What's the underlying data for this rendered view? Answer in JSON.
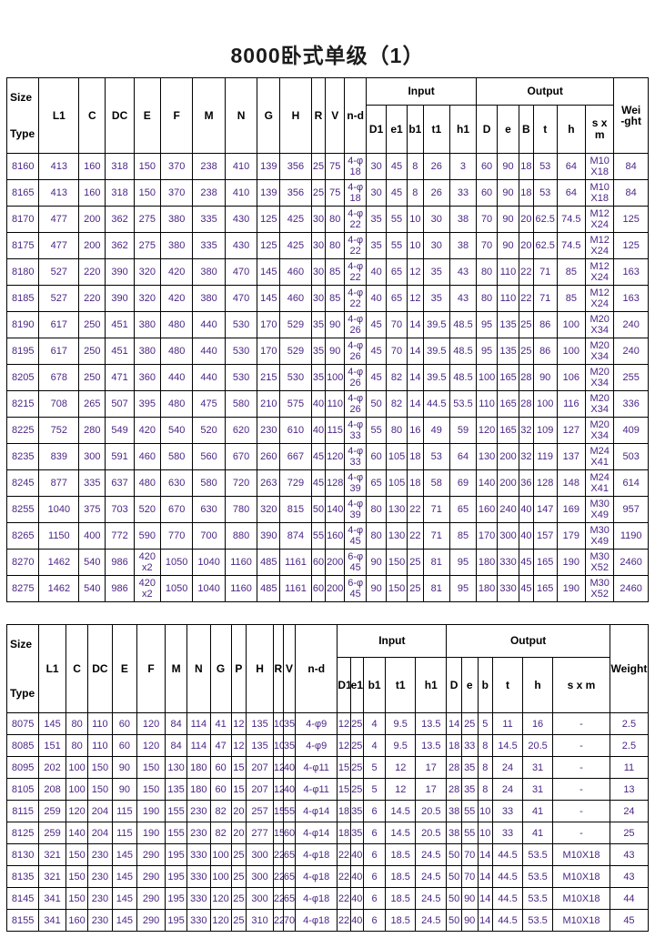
{
  "page": {
    "title": "8000卧式单级（1）"
  },
  "colors": {
    "background": "#ffffff",
    "border": "#000000",
    "header_text": "#000000",
    "data_text": "#4b2585"
  },
  "table1": {
    "header": {
      "size": "Size",
      "type": "Type",
      "dim_cols": [
        "L1",
        "C",
        "DC",
        "E",
        "F",
        "M",
        "N",
        "G",
        "H",
        "R",
        "V",
        "n-d"
      ],
      "input_group": "Input",
      "output_group": "Output",
      "input_cols": [
        "D1",
        "e1",
        "b1",
        "t1",
        "h1"
      ],
      "output_cols": [
        "D",
        "e",
        "B",
        "t",
        "h",
        "s x\nm"
      ],
      "weight": "Wei\n-ght"
    },
    "rows": [
      [
        "8160",
        "413",
        "160",
        "318",
        "150",
        "370",
        "238",
        "410",
        "139",
        "356",
        "25",
        "75",
        "4-φ\n18",
        "30",
        "45",
        "8",
        "26",
        "3",
        "60",
        "90",
        "18",
        "53",
        "64",
        "M10\nX18",
        "84"
      ],
      [
        "8165",
        "413",
        "160",
        "318",
        "150",
        "370",
        "238",
        "410",
        "139",
        "356",
        "25",
        "75",
        "4-φ\n18",
        "30",
        "45",
        "8",
        "26",
        "33",
        "60",
        "90",
        "18",
        "53",
        "64",
        "M10\nX18",
        "84"
      ],
      [
        "8170",
        "477",
        "200",
        "362",
        "275",
        "380",
        "335",
        "430",
        "125",
        "425",
        "30",
        "80",
        "4-φ\n22",
        "35",
        "55",
        "10",
        "30",
        "38",
        "70",
        "90",
        "20",
        "62.5",
        "74.5",
        "M12\nX24",
        "125"
      ],
      [
        "8175",
        "477",
        "200",
        "362",
        "275",
        "380",
        "335",
        "430",
        "125",
        "425",
        "30",
        "80",
        "4-φ\n22",
        "35",
        "55",
        "10",
        "30",
        "38",
        "70",
        "90",
        "20",
        "62.5",
        "74.5",
        "M12\nX24",
        "125"
      ],
      [
        "8180",
        "527",
        "220",
        "390",
        "320",
        "420",
        "380",
        "470",
        "145",
        "460",
        "30",
        "85",
        "4-φ\n22",
        "40",
        "65",
        "12",
        "35",
        "43",
        "80",
        "110",
        "22",
        "71",
        "85",
        "M12\nX24",
        "163"
      ],
      [
        "8185",
        "527",
        "220",
        "390",
        "320",
        "420",
        "380",
        "470",
        "145",
        "460",
        "30",
        "85",
        "4-φ\n22",
        "40",
        "65",
        "12",
        "35",
        "43",
        "80",
        "110",
        "22",
        "71",
        "85",
        "M12\nX24",
        "163"
      ],
      [
        "8190",
        "617",
        "250",
        "451",
        "380",
        "480",
        "440",
        "530",
        "170",
        "529",
        "35",
        "90",
        "4-φ\n26",
        "45",
        "70",
        "14",
        "39.5",
        "48.5",
        "95",
        "135",
        "25",
        "86",
        "100",
        "M20\nX34",
        "240"
      ],
      [
        "8195",
        "617",
        "250",
        "451",
        "380",
        "480",
        "440",
        "530",
        "170",
        "529",
        "35",
        "90",
        "4-φ\n26",
        "45",
        "70",
        "14",
        "39.5",
        "48.5",
        "95",
        "135",
        "25",
        "86",
        "100",
        "M20\nX34",
        "240"
      ],
      [
        "8205",
        "678",
        "250",
        "471",
        "360",
        "440",
        "440",
        "530",
        "215",
        "530",
        "35",
        "100",
        "4-φ\n26",
        "45",
        "82",
        "14",
        "39.5",
        "48.5",
        "100",
        "165",
        "28",
        "90",
        "106",
        "M20\nX34",
        "255"
      ],
      [
        "8215",
        "708",
        "265",
        "507",
        "395",
        "480",
        "475",
        "580",
        "210",
        "575",
        "40",
        "110",
        "4-φ\n26",
        "50",
        "82",
        "14",
        "44.5",
        "53.5",
        "110",
        "165",
        "28",
        "100",
        "116",
        "M20\nX34",
        "336"
      ],
      [
        "8225",
        "752",
        "280",
        "549",
        "420",
        "540",
        "520",
        "620",
        "230",
        "610",
        "40",
        "115",
        "4-φ\n33",
        "55",
        "80",
        "16",
        "49",
        "59",
        "120",
        "165",
        "32",
        "109",
        "127",
        "M20\nX34",
        "409"
      ],
      [
        "8235",
        "839",
        "300",
        "591",
        "460",
        "580",
        "560",
        "670",
        "260",
        "667",
        "45",
        "120",
        "4-φ\n33",
        "60",
        "105",
        "18",
        "53",
        "64",
        "130",
        "200",
        "32",
        "119",
        "137",
        "M24\nX41",
        "503"
      ],
      [
        "8245",
        "877",
        "335",
        "637",
        "480",
        "630",
        "580",
        "720",
        "263",
        "729",
        "45",
        "128",
        "4-φ\n39",
        "65",
        "105",
        "18",
        "58",
        "69",
        "140",
        "200",
        "36",
        "128",
        "148",
        "M24\nX41",
        "614"
      ],
      [
        "8255",
        "1040",
        "375",
        "703",
        "520",
        "670",
        "630",
        "780",
        "320",
        "815",
        "50",
        "140",
        "4-φ\n39",
        "80",
        "130",
        "22",
        "71",
        "65",
        "160",
        "240",
        "40",
        "147",
        "169",
        "M30\nX49",
        "957"
      ],
      [
        "8265",
        "1150",
        "400",
        "772",
        "590",
        "770",
        "700",
        "880",
        "390",
        "874",
        "55",
        "160",
        "4-φ\n45",
        "80",
        "130",
        "22",
        "71",
        "85",
        "170",
        "300",
        "40",
        "157",
        "179",
        "M30\nX49",
        "1190"
      ],
      [
        "8270",
        "1462",
        "540",
        "986",
        "420\nx2",
        "1050",
        "1040",
        "1160",
        "485",
        "1161",
        "60",
        "200",
        "6-φ\n45",
        "90",
        "150",
        "25",
        "81",
        "95",
        "180",
        "330",
        "45",
        "165",
        "190",
        "M30\nX52",
        "2460"
      ],
      [
        "8275",
        "1462",
        "540",
        "986",
        "420\nx2",
        "1050",
        "1040",
        "1160",
        "485",
        "1161",
        "60",
        "200",
        "6-φ\n45",
        "90",
        "150",
        "25",
        "81",
        "95",
        "180",
        "330",
        "45",
        "165",
        "190",
        "M30\nX52",
        "2460"
      ]
    ]
  },
  "table2": {
    "header": {
      "size": "Size",
      "type": "Type",
      "dim_cols": [
        "L1",
        "C",
        "DC",
        "E",
        "F",
        "M",
        "N",
        "G",
        "P",
        "H",
        "R",
        "V",
        "n-d"
      ],
      "input_group": "Input",
      "output_group": "Output",
      "input_cols": [
        "D1",
        "e1",
        "b1",
        "t1",
        "h1"
      ],
      "output_cols": [
        "D",
        "e",
        "b",
        "t",
        "h",
        "s x m"
      ],
      "weight": "Weight"
    },
    "rows": [
      [
        "8075",
        "145",
        "80",
        "110",
        "60",
        "120",
        "84",
        "114",
        "41",
        "12",
        "135",
        "10",
        "35",
        "4-φ9",
        "12",
        "25",
        "4",
        "9.5",
        "13.5",
        "14",
        "25",
        "5",
        "11",
        "16",
        "-",
        "2.5"
      ],
      [
        "8085",
        "151",
        "80",
        "110",
        "60",
        "120",
        "84",
        "114",
        "47",
        "12",
        "135",
        "10",
        "35",
        "4-φ9",
        "12",
        "25",
        "4",
        "9.5",
        "13.5",
        "18",
        "33",
        "8",
        "14.5",
        "20.5",
        "-",
        "2.5"
      ],
      [
        "8095",
        "202",
        "100",
        "150",
        "90",
        "150",
        "130",
        "180",
        "60",
        "15",
        "207",
        "12",
        "40",
        "4-φ11",
        "15",
        "25",
        "5",
        "12",
        "17",
        "28",
        "35",
        "8",
        "24",
        "31",
        "-",
        "11"
      ],
      [
        "8105",
        "208",
        "100",
        "150",
        "90",
        "150",
        "135",
        "180",
        "60",
        "15",
        "207",
        "12",
        "40",
        "4-φ11",
        "15",
        "25",
        "5",
        "12",
        "17",
        "28",
        "35",
        "8",
        "24",
        "31",
        "-",
        "13"
      ],
      [
        "8115",
        "259",
        "120",
        "204",
        "115",
        "190",
        "155",
        "230",
        "82",
        "20",
        "257",
        "15",
        "55",
        "4-φ14",
        "18",
        "35",
        "6",
        "14.5",
        "20.5",
        "38",
        "55",
        "10",
        "33",
        "41",
        "-",
        "24"
      ],
      [
        "8125",
        "259",
        "140",
        "204",
        "115",
        "190",
        "155",
        "230",
        "82",
        "20",
        "277",
        "15",
        "60",
        "4-φ14",
        "18",
        "35",
        "6",
        "14.5",
        "20.5",
        "38",
        "55",
        "10",
        "33",
        "41",
        "-",
        "25"
      ],
      [
        "8130",
        "321",
        "150",
        "230",
        "145",
        "290",
        "195",
        "330",
        "100",
        "25",
        "300",
        "22",
        "65",
        "4-φ18",
        "22",
        "40",
        "6",
        "18.5",
        "24.5",
        "50",
        "70",
        "14",
        "44.5",
        "53.5",
        "M10X18",
        "43"
      ],
      [
        "8135",
        "321",
        "150",
        "230",
        "145",
        "290",
        "195",
        "330",
        "100",
        "25",
        "300",
        "22",
        "65",
        "4-φ18",
        "22",
        "40",
        "6",
        "18.5",
        "24.5",
        "50",
        "70",
        "14",
        "44.5",
        "53.5",
        "M10X18",
        "43"
      ],
      [
        "8145",
        "341",
        "150",
        "230",
        "145",
        "290",
        "195",
        "330",
        "120",
        "25",
        "300",
        "22",
        "65",
        "4-φ18",
        "22",
        "40",
        "6",
        "18.5",
        "24.5",
        "50",
        "90",
        "14",
        "44.5",
        "53.5",
        "M10X18",
        "44"
      ],
      [
        "8155",
        "341",
        "160",
        "230",
        "145",
        "290",
        "195",
        "330",
        "120",
        "25",
        "310",
        "22",
        "70",
        "4-φ18",
        "22",
        "40",
        "6",
        "18.5",
        "24.5",
        "50",
        "90",
        "14",
        "44.5",
        "53.5",
        "M10X18",
        "45"
      ]
    ]
  }
}
